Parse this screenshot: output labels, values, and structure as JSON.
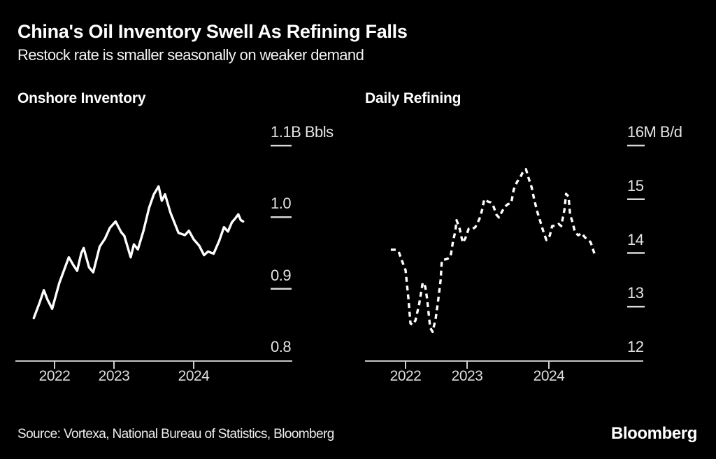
{
  "header": {
    "title": "China's Oil Inventory Swell As Refining Falls",
    "subtitle": "Restock rate is smaller seasonally on weaker demand"
  },
  "footer": {
    "source": "Source: Vortexa, National Bureau of Statistics, Bloomberg",
    "brand": "Bloomberg"
  },
  "colors": {
    "background": "#000000",
    "line": "#ffffff",
    "axis": "#c4c4c4",
    "tick_label": "#e4e4e4"
  },
  "chart_data": [
    {
      "type": "line",
      "title": "Onshore Inventory",
      "unit": "B Bbls",
      "line_style": "solid",
      "grid": false,
      "legend": "none",
      "y_axis": {
        "range": [
          0.8,
          1.13
        ],
        "ticks": [
          {
            "value": 1.1,
            "label": "1.1B Bbls"
          },
          {
            "value": 1.0,
            "label": "1.0"
          },
          {
            "value": 0.9,
            "label": "0.9"
          },
          {
            "value": 0.8,
            "label": "0.8"
          }
        ]
      },
      "x_axis": {
        "range": [
          2021.6,
          2024.75
        ],
        "ticks": [
          {
            "value": 2022,
            "label": "2022"
          },
          {
            "value": 2023,
            "label": "2023"
          },
          {
            "value": 2024,
            "label": "2024"
          }
        ]
      },
      "series": [
        {
          "name": "Onshore Inventory",
          "points": [
            [
              2021.65,
              0.859
            ],
            [
              2021.75,
              0.881
            ],
            [
              2021.82,
              0.898
            ],
            [
              2021.88,
              0.885
            ],
            [
              2021.96,
              0.872
            ],
            [
              2022.08,
              0.908
            ],
            [
              2022.24,
              0.944
            ],
            [
              2022.31,
              0.934
            ],
            [
              2022.38,
              0.925
            ],
            [
              2022.45,
              0.95
            ],
            [
              2022.49,
              0.957
            ],
            [
              2022.58,
              0.93
            ],
            [
              2022.65,
              0.923
            ],
            [
              2022.76,
              0.959
            ],
            [
              2022.85,
              0.97
            ],
            [
              2022.93,
              0.985
            ],
            [
              2023.02,
              0.994
            ],
            [
              2023.09,
              0.979
            ],
            [
              2023.13,
              0.974
            ],
            [
              2023.21,
              0.944
            ],
            [
              2023.25,
              0.962
            ],
            [
              2023.3,
              0.955
            ],
            [
              2023.37,
              0.981
            ],
            [
              2023.44,
              1.013
            ],
            [
              2023.5,
              1.032
            ],
            [
              2023.56,
              1.043
            ],
            [
              2023.6,
              1.023
            ],
            [
              2023.64,
              1.032
            ],
            [
              2023.71,
              1.006
            ],
            [
              2023.81,
              0.978
            ],
            [
              2023.89,
              0.975
            ],
            [
              2023.94,
              0.981
            ],
            [
              2024.0,
              0.969
            ],
            [
              2024.07,
              0.96
            ],
            [
              2024.13,
              0.947
            ],
            [
              2024.18,
              0.952
            ],
            [
              2024.25,
              0.949
            ],
            [
              2024.32,
              0.967
            ],
            [
              2024.38,
              0.986
            ],
            [
              2024.43,
              0.98
            ],
            [
              2024.48,
              0.993
            ],
            [
              2024.52,
              0.998
            ],
            [
              2024.56,
              1.004
            ],
            [
              2024.59,
              0.996
            ],
            [
              2024.62,
              0.994
            ]
          ]
        }
      ]
    },
    {
      "type": "line",
      "title": "Daily Refining",
      "unit": "M B/d",
      "line_style": "dashed",
      "grid": false,
      "legend": "none",
      "y_axis": {
        "range": [
          12,
          16.2
        ],
        "ticks": [
          {
            "value": 16,
            "label": "16M B/d"
          },
          {
            "value": 15,
            "label": "15"
          },
          {
            "value": 14,
            "label": "14"
          },
          {
            "value": 13,
            "label": "13"
          },
          {
            "value": 12,
            "label": "12"
          }
        ]
      },
      "x_axis": {
        "range": [
          2021.7,
          2024.7
        ],
        "ticks": [
          {
            "value": 2022,
            "label": "2022"
          },
          {
            "value": 2023,
            "label": "2023"
          },
          {
            "value": 2024,
            "label": "2024"
          }
        ]
      },
      "series": [
        {
          "name": "Daily Refining",
          "points": [
            [
              2021.76,
              14.06
            ],
            [
              2021.84,
              14.06
            ],
            [
              2021.89,
              14.02
            ],
            [
              2021.94,
              13.86
            ],
            [
              2022.0,
              13.68
            ],
            [
              2022.05,
              13.11
            ],
            [
              2022.08,
              12.69
            ],
            [
              2022.11,
              12.66
            ],
            [
              2022.16,
              12.74
            ],
            [
              2022.22,
              13.04
            ],
            [
              2022.28,
              13.45
            ],
            [
              2022.32,
              13.37
            ],
            [
              2022.35,
              13.15
            ],
            [
              2022.4,
              12.61
            ],
            [
              2022.44,
              12.53
            ],
            [
              2022.49,
              12.78
            ],
            [
              2022.53,
              13.11
            ],
            [
              2022.57,
              13.5
            ],
            [
              2022.59,
              13.86
            ],
            [
              2022.68,
              13.89
            ],
            [
              2022.73,
              13.92
            ],
            [
              2022.77,
              14.21
            ],
            [
              2022.81,
              14.41
            ],
            [
              2022.83,
              14.61
            ],
            [
              2022.88,
              14.45
            ],
            [
              2022.93,
              14.19
            ],
            [
              2022.97,
              14.27
            ],
            [
              2023.02,
              14.45
            ],
            [
              2023.06,
              14.44
            ],
            [
              2023.1,
              14.48
            ],
            [
              2023.15,
              14.63
            ],
            [
              2023.18,
              14.78
            ],
            [
              2023.21,
              15.0
            ],
            [
              2023.25,
              14.96
            ],
            [
              2023.29,
              14.94
            ],
            [
              2023.32,
              14.88
            ],
            [
              2023.36,
              14.71
            ],
            [
              2023.39,
              14.66
            ],
            [
              2023.43,
              14.78
            ],
            [
              2023.47,
              14.87
            ],
            [
              2023.5,
              14.91
            ],
            [
              2023.54,
              14.93
            ],
            [
              2023.57,
              15.18
            ],
            [
              2023.61,
              15.32
            ],
            [
              2023.65,
              15.41
            ],
            [
              2023.68,
              15.5
            ],
            [
              2023.72,
              15.56
            ],
            [
              2023.75,
              15.4
            ],
            [
              2023.79,
              15.22
            ],
            [
              2023.82,
              15.0
            ],
            [
              2023.86,
              14.76
            ],
            [
              2023.91,
              14.51
            ],
            [
              2023.94,
              14.36
            ],
            [
              2023.97,
              14.24
            ],
            [
              2024.01,
              14.32
            ],
            [
              2024.04,
              14.5
            ],
            [
              2024.09,
              14.51
            ],
            [
              2024.12,
              14.54
            ],
            [
              2024.15,
              14.5
            ],
            [
              2024.19,
              14.8
            ],
            [
              2024.21,
              15.1
            ],
            [
              2024.24,
              15.05
            ],
            [
              2024.26,
              14.71
            ],
            [
              2024.29,
              14.57
            ],
            [
              2024.32,
              14.38
            ],
            [
              2024.36,
              14.33
            ],
            [
              2024.4,
              14.37
            ],
            [
              2024.44,
              14.29
            ],
            [
              2024.48,
              14.24
            ],
            [
              2024.51,
              14.2
            ],
            [
              2024.55,
              14.02
            ],
            [
              2024.56,
              13.97
            ]
          ]
        }
      ]
    }
  ]
}
